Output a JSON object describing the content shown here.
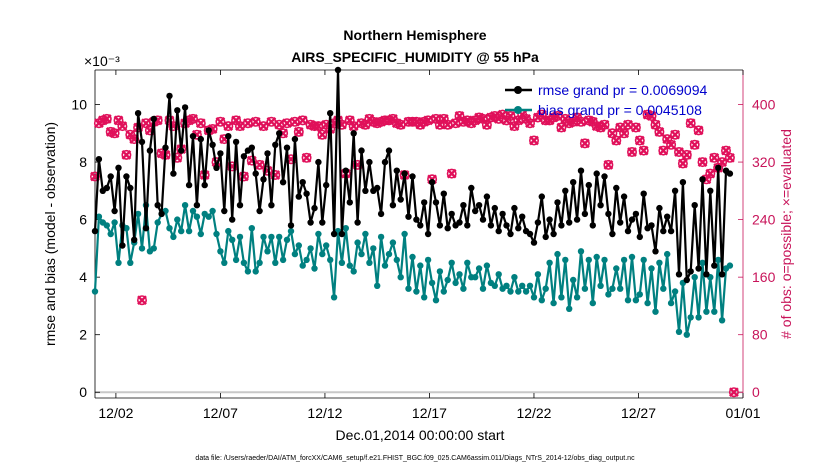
{
  "chart_data": {
    "type": "line",
    "title": "Northern Hemisphere",
    "subtitle": "AIRS_SPECIFIC_HUMIDITY @ 55 hPa",
    "xlabel": "Dec.01,2014 00:00:00 start",
    "ylabel": "rmse and bias (model - observation)",
    "y2label": "# of obs: o=possible; ×=evaluated",
    "y_exponent_label": "×10⁻³",
    "footnote": "data file: /Users/raeder/DAI/ATM_forcXX/CAM6_setup/f.e21.FHIST_BGC.f09_025.CAM6assim.011/Diags_NTrS_2014-12/obs_diag_output.nc",
    "xlim": [
      0,
      31
    ],
    "ylim": [
      -0.2,
      11.2
    ],
    "y2lim": [
      -8,
      448
    ],
    "x_tick_labels": [
      "12/02",
      "12/07",
      "12/12",
      "12/17",
      "12/22",
      "12/27",
      "01/01"
    ],
    "x_tick_values": [
      1,
      6,
      11,
      16,
      21,
      26,
      31
    ],
    "y_tick_labels": [
      "0",
      "2",
      "4",
      "6",
      "8",
      "10"
    ],
    "y_tick_values": [
      0,
      2,
      4,
      6,
      8,
      10
    ],
    "y2_tick_labels": [
      "0",
      "80",
      "160",
      "240",
      "320",
      "400"
    ],
    "y2_tick_values": [
      0,
      80,
      160,
      240,
      320,
      400
    ],
    "legend_placement": "top-right",
    "colors": {
      "rmse": "#000000",
      "bias": "#008080",
      "obs": "#e0105a",
      "right_axis": "#c8145a"
    },
    "series": [
      {
        "name": "rmse grand pr = 0.0069094",
        "values": [
          5.6,
          8.1,
          7.0,
          7.1,
          7.5,
          6.3,
          7.8,
          5.1,
          7.5,
          7.1,
          5.3,
          9.7,
          8.7,
          5.7,
          8.4,
          9.5,
          6.5,
          6.2,
          8.5,
          10.3,
          7.6,
          9.8,
          8.4,
          9.9,
          7.2,
          8.9,
          6.5,
          8.8,
          7.2,
          9.1,
          8.6,
          7.8,
          8.3,
          6.3,
          8.9,
          6.0,
          8.7,
          6.5,
          8.2,
          8.4,
          8.5,
          7.6,
          6.3,
          7.4,
          8.3,
          6.5,
          8.6,
          9.0,
          7.3,
          8.5,
          5.8,
          8.8,
          6.8,
          7.3,
          6.9,
          5.9,
          6.4,
          8.0,
          5.9,
          7.2,
          9.7,
          5.5,
          11.2,
          5.5,
          7.7,
          6.6,
          9.0,
          5.9,
          8.4,
          7.0,
          8.0,
          7.0,
          7.1,
          6.2,
          8.0,
          8.4,
          6.5,
          7.7,
          6.7,
          7.6,
          6.1,
          7.5,
          6.0,
          5.8,
          6.6,
          5.5,
          7.3,
          6.6,
          5.8,
          6.9,
          5.7,
          6.2,
          5.8,
          5.9,
          6.5,
          5.8,
          7.1,
          6.3,
          6.5,
          6.0,
          6.8,
          5.8,
          6.4,
          5.6,
          6.2,
          5.8,
          5.5,
          6.4,
          5.7,
          6.1,
          5.6,
          5.5,
          5.2,
          5.9,
          6.8,
          5.4,
          6.0,
          5.5,
          6.6,
          5.8,
          7.0,
          5.9,
          7.3,
          6.0,
          7.7,
          6.2,
          7.2,
          5.8,
          7.6,
          6.5,
          7.5,
          6.2,
          5.5,
          7.1,
          5.9,
          6.8,
          5.6,
          6.0,
          6.2,
          5.4,
          6.9,
          5.7,
          5.8,
          4.9,
          6.4,
          5.6,
          6.1,
          5.6,
          7.0,
          4.1,
          7.3,
          3.9,
          4.2,
          6.5,
          4.3,
          7.4,
          4.1,
          7.0,
          4.4,
          7.8,
          4.1,
          7.7,
          7.6
        ],
        "x_start": 0,
        "x_step": 0.1875
      },
      {
        "name": "bias grand pr = 0.0045108",
        "values": [
          3.5,
          6.1,
          5.9,
          5.8,
          5.5,
          5.9,
          4.5,
          5.8,
          5.7,
          4.5,
          5.2,
          6.2,
          5.0,
          6.5,
          4.9,
          5.0,
          5.9,
          6.2,
          6.3,
          5.7,
          5.4,
          6.0,
          5.6,
          6.5,
          5.6,
          6.3,
          6.1,
          5.5,
          6.2,
          6.1,
          6.3,
          5.5,
          4.9,
          4.5,
          5.6,
          5.3,
          4.6,
          5.4,
          4.5,
          4.2,
          5.7,
          4.2,
          4.5,
          5.4,
          4.9,
          5.4,
          4.5,
          5.4,
          4.6,
          5.3,
          5.6,
          4.8,
          5.1,
          4.4,
          4.6,
          5.0,
          4.3,
          5.5,
          4.8,
          5.1,
          4.6,
          3.3,
          5.6,
          4.5,
          5.7,
          4.4,
          4.2,
          5.2,
          4.8,
          5.5,
          4.5,
          5.0,
          3.7,
          5.4,
          4.4,
          4.8,
          5.2,
          4.6,
          4.0,
          5.5,
          3.6,
          4.7,
          3.5,
          4.4,
          3.3,
          4.6,
          3.8,
          3.2,
          4.2,
          3.5,
          3.9,
          4.5,
          3.8,
          4.1,
          3.6,
          4.5,
          4.0,
          4.0,
          4.3,
          3.6,
          4.4,
          3.8,
          3.7,
          4.1,
          3.6,
          3.7,
          3.5,
          4.0,
          3.5,
          3.7,
          3.5,
          3.7,
          3.3,
          4.1,
          3.2,
          3.6,
          4.5,
          3.1,
          4.8,
          3.3,
          4.6,
          2.9,
          3.9,
          3.3,
          4.9,
          3.6,
          4.6,
          3.1,
          4.7,
          3.7,
          4.6,
          3.4,
          3.6,
          4.3,
          3.6,
          4.6,
          3.2,
          4.7,
          3.2,
          3.4,
          4.6,
          3.1,
          4.3,
          2.8,
          4.5,
          3.6,
          4.8,
          3.1,
          3.5,
          2.1,
          3.8,
          2.0,
          2.6,
          4.0,
          2.6,
          4.5,
          2.8,
          4.0,
          2.8,
          4.6,
          2.5,
          4.3,
          4.4
        ],
        "x_start": 0,
        "x_step": 0.1875
      },
      {
        "name": "observations possible",
        "axis": "right",
        "values": [
          300,
          374,
          378,
          380,
          362,
          360,
          378,
          370,
          330,
          358,
          352,
          368,
          128,
          374,
          364,
          376,
          378,
          332,
          330,
          378,
          370,
          326,
          338,
          374,
          378,
          380,
          358,
          374,
          302,
          364,
          366,
          320,
          376,
          352,
          370,
          314,
          378,
          370,
          300,
          374,
          322,
          376,
          316,
          370,
          308,
          376,
          302,
          372,
          360,
          374,
          324,
          376,
          362,
          378,
          326,
          372,
          370,
          370,
          358,
          372,
          366,
          374,
          378,
          372,
          304,
          378,
          370,
          316,
          374,
          372,
          380,
          376,
          374,
          376,
          378,
          378,
          380,
          374,
          372,
          302,
          376,
          376,
          376,
          372,
          376,
          378,
          296,
          380,
          372,
          380,
          372,
          304,
          374,
          384,
          376,
          378,
          374,
          378,
          382,
          380,
          372,
          382,
          384,
          380,
          386,
          378,
          384,
          370,
          378,
          386,
          380,
          374,
          350,
          382,
          386,
          378,
          378,
          382,
          384,
          368,
          380,
          374,
          376,
          382,
          376,
          346,
          378,
          376,
          370,
          368,
          372,
          316,
          360,
          350,
          368,
          360,
          372,
          334,
          368,
          350,
          336,
          386,
          384,
          372,
          362,
          336,
          352,
          344,
          358,
          334,
          318,
          330,
          374,
          344,
          364,
          320,
          296,
          304,
          326,
          312,
          320,
          336,
          326,
          0
        ],
        "x_start": 0,
        "x_step": 0.1875
      }
    ]
  }
}
